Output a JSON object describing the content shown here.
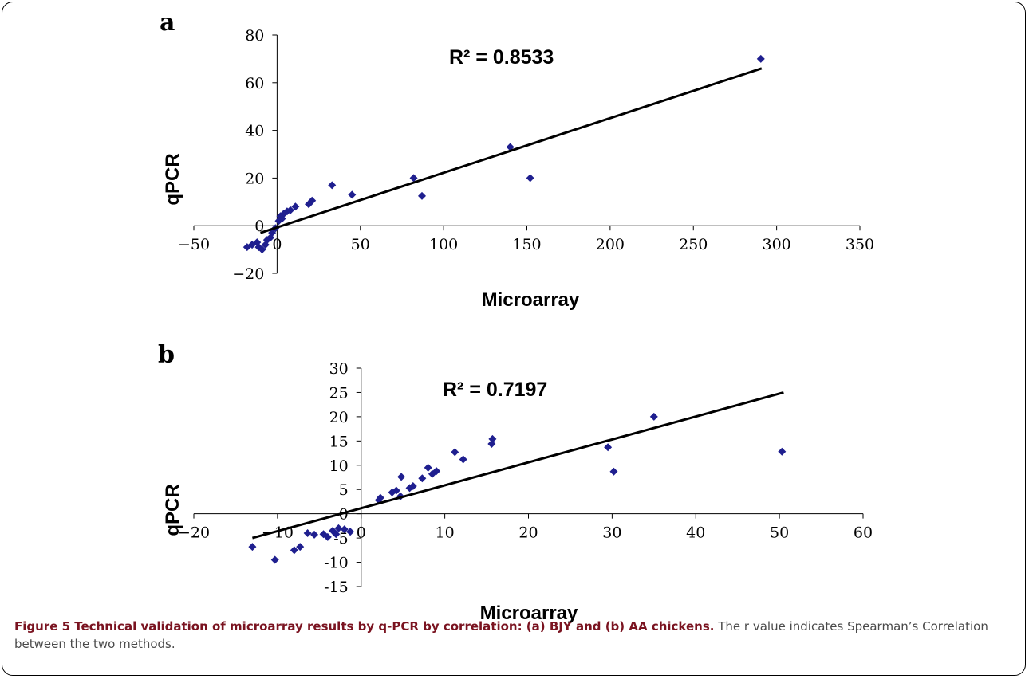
{
  "chart_data": [
    {
      "panel_label": "a",
      "type": "scatter",
      "r_squared_label": "R² = 0.8533",
      "xlabel": "Microarray",
      "ylabel": "qPCR",
      "xlim": [
        -50,
        350
      ],
      "ylim": [
        -20,
        80
      ],
      "xticks": [
        -50,
        0,
        50,
        100,
        150,
        200,
        250,
        300,
        350
      ],
      "yticks": [
        -20,
        0,
        20,
        40,
        60,
        80
      ],
      "xtick_labels": [
        "−50",
        "0",
        "50",
        "100",
        "150",
        "200",
        "250",
        "300",
        "350"
      ],
      "ytick_labels": [
        "−20",
        "0",
        "20",
        "40",
        "60",
        "80"
      ],
      "marker_color": "#1f1f8f",
      "trendline": {
        "x": [
          -10,
          291
        ],
        "y": [
          -3,
          66
        ]
      },
      "points": [
        [
          290.5,
          70
        ],
        [
          140,
          33
        ],
        [
          152,
          20
        ],
        [
          82,
          20
        ],
        [
          87,
          12.5
        ],
        [
          33,
          17
        ],
        [
          45,
          13
        ],
        [
          21,
          10.5
        ],
        [
          19,
          9
        ],
        [
          11,
          8
        ],
        [
          8,
          6.5
        ],
        [
          6,
          6
        ],
        [
          4,
          5
        ],
        [
          3,
          3
        ],
        [
          1,
          2
        ],
        [
          2,
          4
        ],
        [
          -1,
          -1
        ],
        [
          -3,
          -3
        ],
        [
          -4,
          -5
        ],
        [
          -6,
          -6
        ],
        [
          -7,
          -8
        ],
        [
          -9,
          -10
        ],
        [
          -11,
          -9
        ],
        [
          -12,
          -7
        ],
        [
          -15,
          -8
        ],
        [
          -18,
          -9
        ]
      ]
    },
    {
      "panel_label": "b",
      "type": "scatter",
      "r_squared_label": "R² = 0.7197",
      "xlabel": "Microarray",
      "ylabel": "qPCR",
      "xlim": [
        -20,
        60
      ],
      "ylim": [
        -15,
        30
      ],
      "xticks": [
        -20,
        -10,
        0,
        10,
        20,
        30,
        40,
        50,
        60
      ],
      "yticks": [
        -15,
        -10,
        -5,
        0,
        5,
        10,
        15,
        20,
        25,
        30
      ],
      "xtick_labels": [
        "−20",
        "−10",
        "0",
        "10",
        "20",
        "30",
        "40",
        "50",
        "60"
      ],
      "ytick_labels": [
        "-15",
        "-10",
        "-5",
        "0",
        "5",
        "10",
        "15",
        "20",
        "25",
        "30"
      ],
      "marker_color": "#1f1f8f",
      "trendline": {
        "x": [
          -13,
          50.5
        ],
        "y": [
          -5,
          25
        ]
      },
      "points": [
        [
          35,
          20
        ],
        [
          50.3,
          12.8
        ],
        [
          29.5,
          13.7
        ],
        [
          30.2,
          8.7
        ],
        [
          15.7,
          15.4
        ],
        [
          15.6,
          14.4
        ],
        [
          11.2,
          12.7
        ],
        [
          12.2,
          11.2
        ],
        [
          8,
          9.5
        ],
        [
          8.5,
          8.2
        ],
        [
          9,
          8.8
        ],
        [
          7.3,
          7.3
        ],
        [
          6.2,
          5.7
        ],
        [
          5.8,
          5.3
        ],
        [
          4.8,
          7.6
        ],
        [
          4.7,
          3.6
        ],
        [
          4.2,
          4.8
        ],
        [
          3.7,
          4.4
        ],
        [
          2.3,
          3.3
        ],
        [
          2.1,
          2.8
        ],
        [
          -1.3,
          -3.7
        ],
        [
          -2,
          -3.2
        ],
        [
          -2.7,
          -3
        ],
        [
          -3,
          -4.2
        ],
        [
          -3.4,
          -3.5
        ],
        [
          -4,
          -4.8
        ],
        [
          -4.5,
          -4.2
        ],
        [
          -5.6,
          -4.3
        ],
        [
          -6.4,
          -4
        ],
        [
          -7.3,
          -6.8
        ],
        [
          -8,
          -7.5
        ],
        [
          -10.3,
          -9.5
        ],
        [
          -13,
          -6.8
        ]
      ]
    }
  ],
  "caption": {
    "bold": "Figure 5 Technical validation of microarray results by q-PCR by correlation: (a) BJY and (b) AA chickens.",
    "rest": " The r value indicates Spearman’s Correlation between the two methods."
  }
}
